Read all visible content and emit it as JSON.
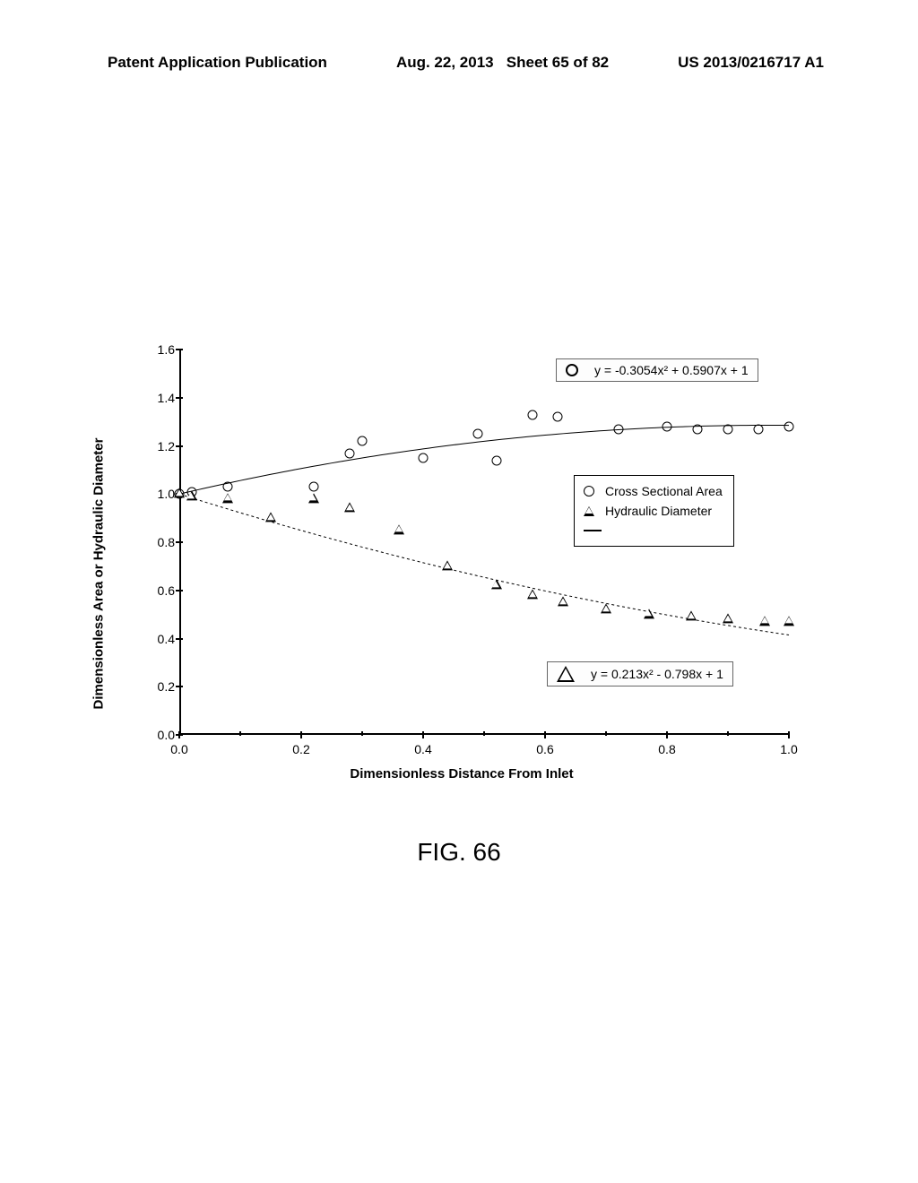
{
  "header": {
    "left": "Patent Application Publication",
    "center_date": "Aug. 22, 2013",
    "center_sheet": "Sheet 65 of 82",
    "right": "US 2013/0216717 A1"
  },
  "figure_caption": "FIG. 66",
  "chart": {
    "type": "scatter",
    "background_color": "#ffffff",
    "xlabel": "Dimensionless Distance From Inlet",
    "ylabel": "Dimensionless Area or Hydraulic Diameter",
    "xlim": [
      0.0,
      1.0
    ],
    "ylim": [
      0.0,
      1.6
    ],
    "xtick_step": 0.2,
    "ytick_step": 0.2,
    "xticks": [
      "0.0",
      "0.2",
      "0.4",
      "0.6",
      "0.8",
      "1.0"
    ],
    "yticks": [
      "0.0",
      "0.2",
      "0.4",
      "0.6",
      "0.8",
      "1.0",
      "1.2",
      "1.4",
      "1.6"
    ],
    "label_fontsize": 15,
    "tick_fontsize": 14,
    "series": [
      {
        "name": "Cross Sectional Area",
        "marker": "circle",
        "color": "#000000",
        "marker_size": 11,
        "x": [
          0.0,
          0.02,
          0.08,
          0.22,
          0.28,
          0.3,
          0.4,
          0.49,
          0.52,
          0.58,
          0.62,
          0.72,
          0.8,
          0.85,
          0.9,
          0.95,
          1.0
        ],
        "y": [
          1.0,
          1.01,
          1.03,
          1.03,
          1.17,
          1.22,
          1.15,
          1.25,
          1.14,
          1.33,
          1.32,
          1.27,
          1.28,
          1.27,
          1.27,
          1.27,
          1.28
        ]
      },
      {
        "name": "Hydraulic Diameter",
        "marker": "triangle",
        "color": "#000000",
        "marker_size": 11,
        "x": [
          0.0,
          0.02,
          0.08,
          0.15,
          0.22,
          0.28,
          0.36,
          0.44,
          0.52,
          0.58,
          0.63,
          0.7,
          0.77,
          0.84,
          0.9,
          0.96,
          1.0
        ],
        "y": [
          1.0,
          0.99,
          0.98,
          0.9,
          0.98,
          0.94,
          0.85,
          0.7,
          0.62,
          0.58,
          0.55,
          0.52,
          0.5,
          0.49,
          0.48,
          0.47,
          0.47
        ]
      }
    ],
    "fit_curves": [
      {
        "label": "y = -0.3054x² + 0.5907x + 1",
        "a": -0.3054,
        "b": 0.5907,
        "c": 1,
        "linked_marker": "circle"
      },
      {
        "label": "y = 0.213x² - 0.798x + 1",
        "a": 0.213,
        "b": -0.798,
        "c": 1,
        "linked_marker": "triangle"
      }
    ],
    "legend": {
      "items": [
        "Cross Sectional Area",
        "Hydraulic Diameter"
      ]
    },
    "equation_boxes": {
      "top": "y = -0.3054x² + 0.5907x + 1",
      "bottom": "y = 0.213x² - 0.798x + 1"
    }
  }
}
